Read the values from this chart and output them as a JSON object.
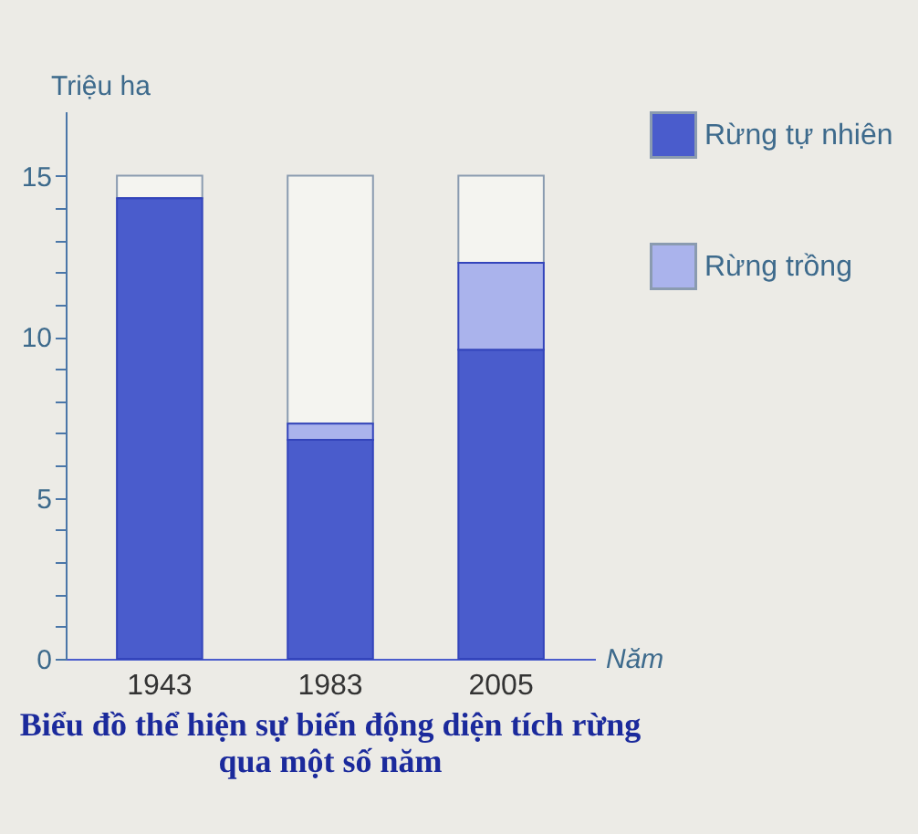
{
  "chart_data": {
    "type": "bar",
    "stacked": true,
    "title": "Biểu đồ thể hiện sự biến động diện tích rừng\nqua một số năm",
    "xlabel": "Năm",
    "ylabel": "Triệu ha",
    "categories": [
      "1943",
      "1983",
      "2005"
    ],
    "series": [
      {
        "name": "Rừng tự nhiên",
        "color": "#4a5ccc",
        "values": [
          14.3,
          6.8,
          9.6
        ]
      },
      {
        "name": "Rừng trồng",
        "color": "#aab3ec",
        "values": [
          0,
          0.5,
          2.7
        ]
      },
      {
        "color": "#f4f4f0",
        "values": [
          0.7,
          7.7,
          2.7
        ]
      }
    ],
    "ylim": [
      0,
      17
    ],
    "yticks": [
      0,
      {
        "value": 1,
        "label": null
      },
      {
        "value": 2,
        "label": null
      },
      {
        "value": 3,
        "label": null
      },
      {
        "value": 4,
        "label": null
      },
      5,
      {
        "value": 6,
        "label": null
      },
      {
        "value": 7,
        "label": null
      },
      {
        "value": 8,
        "label": null
      },
      {
        "value": 9,
        "label": null
      },
      10,
      {
        "value": 11,
        "label": null
      },
      {
        "value": 12,
        "label": null
      },
      {
        "value": 13,
        "label": null
      },
      {
        "value": 14,
        "label": null
      },
      15
    ],
    "grid": false,
    "legend": "right"
  }
}
